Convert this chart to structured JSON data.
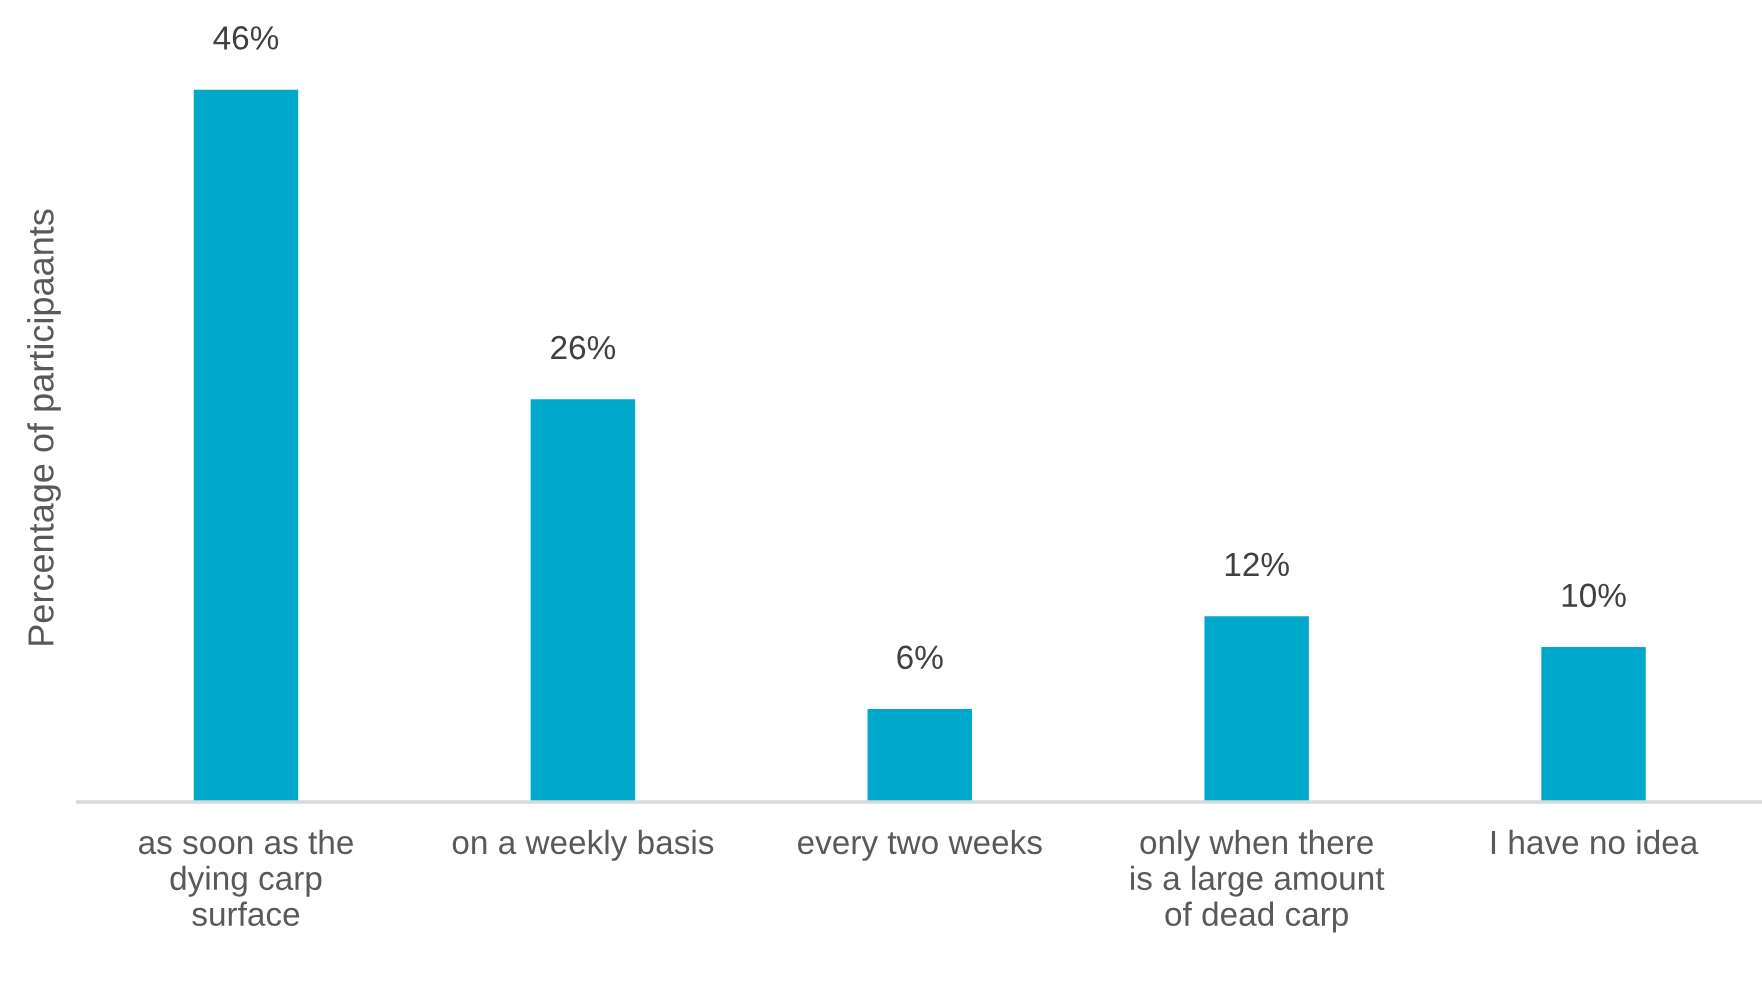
{
  "chart_data": {
    "type": "bar",
    "ylabel": "Percentage of participaants",
    "categories": [
      "as soon as the\ndying carp\nsurface",
      "on a weekly basis",
      "every two weeks",
      "only when there\nis a large amount\nof dead carp",
      "I have no idea"
    ],
    "values": [
      46,
      26,
      6,
      12,
      10
    ],
    "value_labels": [
      "46%",
      "26%",
      "6%",
      "12%",
      "10%"
    ],
    "color": "#00a9cc",
    "tick_labels": "x",
    "grid": false,
    "legend": false
  }
}
